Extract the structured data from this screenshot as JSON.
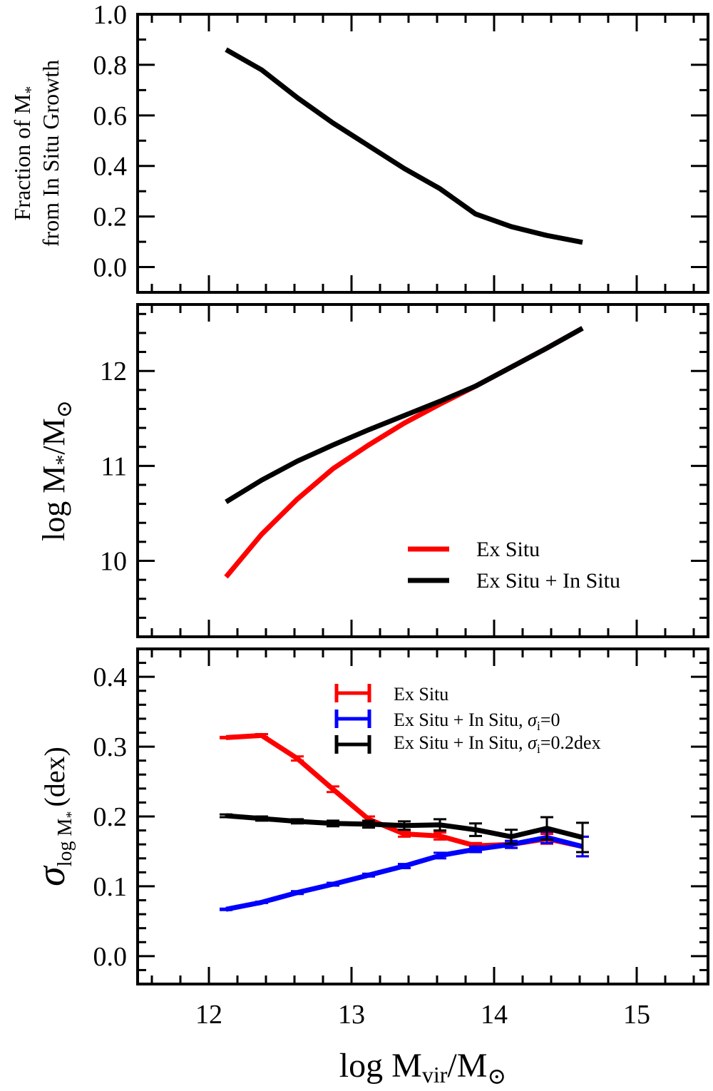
{
  "chart_data": [
    {
      "type": "line",
      "panel": "top",
      "ylabel_line1": "Fraction of M",
      "ylabel_line1_sub": "*",
      "ylabel_line2": "from In Situ Growth",
      "ylim": [
        -0.1,
        1.0
      ],
      "yticks": [
        "1.0",
        "0.8",
        "0.6",
        "0.4",
        "0.2",
        "0.0"
      ],
      "ytick_values": [
        1.0,
        0.8,
        0.6,
        0.4,
        0.2,
        0.0
      ],
      "series": [
        {
          "name": "in situ fraction",
          "color": "#000000",
          "x": [
            12.12,
            12.37,
            12.62,
            12.87,
            13.12,
            13.37,
            13.62,
            13.87,
            14.12,
            14.37,
            14.62
          ],
          "y": [
            0.86,
            0.78,
            0.67,
            0.57,
            0.48,
            0.39,
            0.31,
            0.21,
            0.16,
            0.125,
            0.098
          ]
        }
      ]
    },
    {
      "type": "line",
      "panel": "middle",
      "ylabel": "log M",
      "ylabel_sub": "*",
      "ylabel_tail": "/M",
      "ylabel_tail_sub": "⊙",
      "ylim": [
        9.2,
        12.7
      ],
      "yticks": [
        "12",
        "11",
        "10"
      ],
      "ytick_values": [
        12,
        11,
        10
      ],
      "legend": [
        "Ex Situ",
        "Ex Situ + In Situ"
      ],
      "series": [
        {
          "name": "Ex Situ",
          "color": "#ff0000",
          "x": [
            12.12,
            12.37,
            12.62,
            12.87,
            13.12,
            13.37,
            13.62,
            13.87,
            14.12,
            14.37,
            14.62
          ],
          "y": [
            9.83,
            10.28,
            10.65,
            10.97,
            11.22,
            11.45,
            11.65,
            11.84,
            12.04,
            12.24,
            12.45
          ]
        },
        {
          "name": "Ex Situ + In Situ",
          "color": "#000000",
          "x": [
            12.12,
            12.37,
            12.62,
            12.87,
            13.12,
            13.37,
            13.62,
            13.87,
            14.12,
            14.37,
            14.62
          ],
          "y": [
            10.62,
            10.85,
            11.05,
            11.22,
            11.38,
            11.53,
            11.68,
            11.84,
            12.04,
            12.24,
            12.45
          ]
        }
      ]
    },
    {
      "type": "line",
      "panel": "bottom",
      "ylabel": "σ",
      "ylabel_sub": "log M",
      "ylabel_subsub": "*",
      "ylabel_tail": "(dex)",
      "ylim": [
        -0.04,
        0.44
      ],
      "yticks": [
        "0.4",
        "0.3",
        "0.2",
        "0.1",
        "0.0"
      ],
      "ytick_values": [
        0.4,
        0.3,
        0.2,
        0.1,
        0.0
      ],
      "legend": [
        {
          "text": "Ex Situ",
          "sigma": ""
        },
        {
          "text": "Ex Situ + In Situ, ",
          "sigma": "σ",
          "sub": "i",
          "value": "=0"
        },
        {
          "text": "Ex Situ + In Situ, ",
          "sigma": "σ",
          "sub": "i",
          "value": "=0.2dex"
        }
      ],
      "series": [
        {
          "name": "Ex Situ",
          "color": "#ff0000",
          "x": [
            12.12,
            12.37,
            12.62,
            12.87,
            13.12,
            13.37,
            13.62,
            13.87,
            14.12,
            14.37,
            14.62
          ],
          "y": [
            0.313,
            0.316,
            0.283,
            0.239,
            0.196,
            0.175,
            0.172,
            0.158,
            0.16,
            0.168,
            0.157
          ],
          "err": [
            0.001,
            0.002,
            0.003,
            0.004,
            0.004,
            0.004,
            0.005,
            0.004,
            0.005,
            0.007,
            0.014
          ]
        },
        {
          "name": "Ex Situ + In Situ, sigma_i=0",
          "color": "#0000ff",
          "x": [
            12.12,
            12.37,
            12.62,
            12.87,
            13.12,
            13.37,
            13.62,
            13.87,
            14.12,
            14.37,
            14.62
          ],
          "y": [
            0.067,
            0.077,
            0.091,
            0.103,
            0.116,
            0.129,
            0.144,
            0.153,
            0.16,
            0.17,
            0.157
          ],
          "err": [
            0.001,
            0.001,
            0.002,
            0.002,
            0.002,
            0.003,
            0.004,
            0.004,
            0.005,
            0.008,
            0.014
          ]
        },
        {
          "name": "Ex Situ + In Situ, sigma_i=0.2dex",
          "color": "#000000",
          "x": [
            12.12,
            12.37,
            12.62,
            12.87,
            13.12,
            13.37,
            13.62,
            13.87,
            14.12,
            14.37,
            14.62
          ],
          "y": [
            0.201,
            0.197,
            0.193,
            0.19,
            0.189,
            0.187,
            0.188,
            0.181,
            0.171,
            0.183,
            0.17
          ],
          "err": [
            0.002,
            0.003,
            0.003,
            0.004,
            0.005,
            0.006,
            0.008,
            0.009,
            0.01,
            0.016,
            0.021
          ]
        }
      ]
    }
  ],
  "xaxis": {
    "xlim": [
      11.5,
      15.5
    ],
    "xticks": [
      "12",
      "13",
      "14",
      "15"
    ],
    "xtick_values": [
      12,
      13,
      14,
      15
    ],
    "xlabel": "log M",
    "xlabel_sub": "vir",
    "xlabel_tail": "/M",
    "xlabel_tail_sub": "⊙"
  }
}
